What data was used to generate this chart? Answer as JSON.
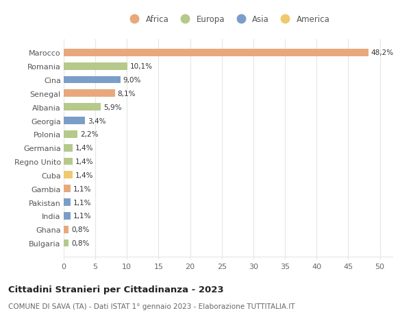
{
  "countries": [
    "Bulgaria",
    "Ghana",
    "India",
    "Pakistan",
    "Gambia",
    "Cuba",
    "Regno Unito",
    "Germania",
    "Polonia",
    "Georgia",
    "Albania",
    "Senegal",
    "Cina",
    "Romania",
    "Marocco"
  ],
  "values": [
    0.8,
    0.8,
    1.1,
    1.1,
    1.1,
    1.4,
    1.4,
    1.4,
    2.2,
    3.4,
    5.9,
    8.1,
    9.0,
    10.1,
    48.2
  ],
  "labels": [
    "0,8%",
    "0,8%",
    "1,1%",
    "1,1%",
    "1,1%",
    "1,4%",
    "1,4%",
    "1,4%",
    "2,2%",
    "3,4%",
    "5,9%",
    "8,1%",
    "9,0%",
    "10,1%",
    "48,2%"
  ],
  "colors": [
    "#b5c98a",
    "#e8a87c",
    "#7b9ec9",
    "#7b9ec9",
    "#e8a87c",
    "#f0c96e",
    "#b5c98a",
    "#b5c98a",
    "#b5c98a",
    "#7b9ec9",
    "#b5c98a",
    "#e8a87c",
    "#7b9ec9",
    "#b5c98a",
    "#e8a87c"
  ],
  "legend_labels": [
    "Africa",
    "Europa",
    "Asia",
    "America"
  ],
  "legend_colors": [
    "#e8a87c",
    "#b5c98a",
    "#7b9ec9",
    "#f0c96e"
  ],
  "xlim": [
    0,
    52
  ],
  "xticks": [
    0,
    5,
    10,
    15,
    20,
    25,
    30,
    35,
    40,
    45,
    50
  ],
  "title": "Cittadini Stranieri per Cittadinanza - 2023",
  "subtitle": "COMUNE DI SAVA (TA) - Dati ISTAT 1° gennaio 2023 - Elaborazione TUTTITALIA.IT",
  "background_color": "#ffffff",
  "grid_color": "#e5e5e5",
  "bar_height": 0.55,
  "label_fontsize": 7.5,
  "ytick_fontsize": 8.0,
  "xtick_fontsize": 8.0,
  "legend_fontsize": 8.5,
  "title_fontsize": 9.5,
  "subtitle_fontsize": 7.5
}
